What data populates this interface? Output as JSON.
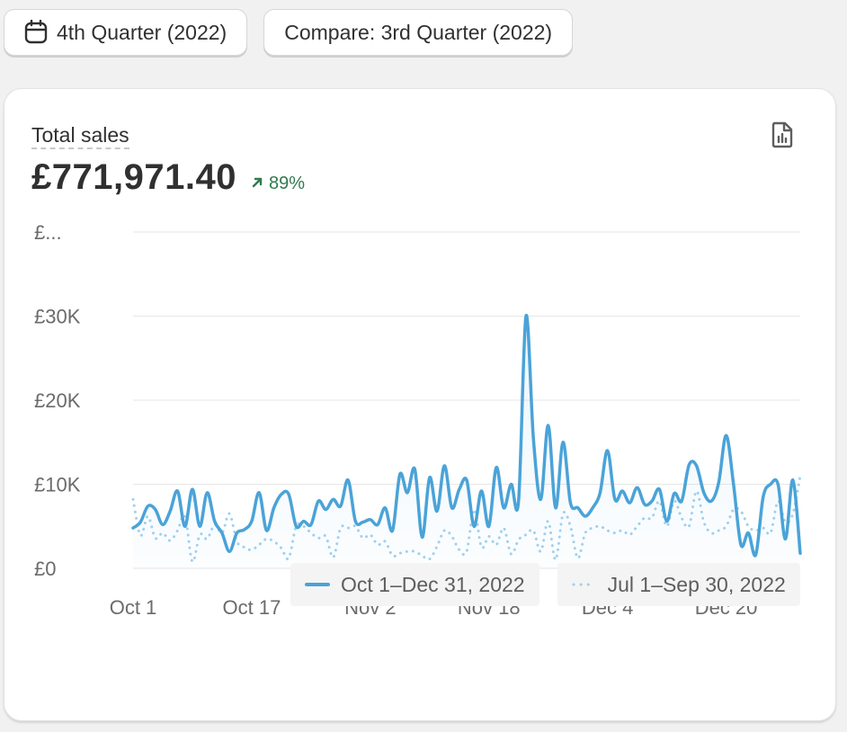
{
  "toolbar": {
    "period_label": "4th Quarter (2022)",
    "compare_label": "Compare: 3rd Quarter (2022)"
  },
  "card": {
    "title": "Total sales",
    "value": "£771,971.40",
    "change": "89%",
    "change_color": "#2f7a4f"
  },
  "icons": {
    "period": "calendar-icon",
    "report": "report-icon",
    "change": "arrow-up-right-icon"
  },
  "colors": {
    "current_series": "#4aa3d8",
    "previous_series": "#9fd0ee",
    "grid": "#e6e6e6",
    "axis_text": "#6b6b6b"
  },
  "chart_data": {
    "type": "line",
    "xlabel": "",
    "ylabel": "",
    "ylim": [
      0,
      40000
    ],
    "yticks": [
      0,
      10000,
      20000,
      30000,
      40000
    ],
    "ytick_labels": [
      "£0",
      "£10K",
      "£20K",
      "£30K",
      "£..."
    ],
    "xtick_labels": [
      "Oct 1",
      "Oct 17",
      "Nov 2",
      "Nov 18",
      "Dec 4",
      "Dec 20"
    ],
    "xtick_index": [
      0,
      16,
      32,
      48,
      64,
      80
    ],
    "grid": true,
    "legend_position": "bottom-right",
    "series": [
      {
        "name": "Oct 1–Dec 31, 2022",
        "style": "solid",
        "values": [
          4800,
          5500,
          7400,
          7000,
          5200,
          6800,
          9200,
          5000,
          9400,
          5000,
          9000,
          5600,
          4200,
          2000,
          4200,
          4600,
          5600,
          9000,
          4500,
          7200,
          8800,
          8800,
          5000,
          5600,
          5200,
          8000,
          7000,
          8200,
          7400,
          10500,
          5600,
          5500,
          5800,
          5200,
          7200,
          4500,
          11200,
          9000,
          11800,
          3700,
          10800,
          6800,
          12200,
          7200,
          9400,
          10500,
          5000,
          9200,
          5000,
          12000,
          7200,
          10000,
          8000,
          30000,
          15500,
          8200,
          17000,
          7200,
          15000,
          7800,
          7200,
          6200,
          7200,
          9000,
          14000,
          8200,
          9200,
          7800,
          9600,
          7600,
          8000,
          9400,
          5600,
          8900,
          8000,
          12300,
          12200,
          9000,
          8000,
          10200,
          15800,
          10000,
          2800,
          4200,
          1600,
          8500,
          10000,
          10000,
          3500,
          10500,
          1800
        ]
      },
      {
        "name": "Jul 1–Sep 30, 2022",
        "style": "dotted",
        "values": [
          8200,
          3900,
          6200,
          3600,
          4200,
          3300,
          4500,
          6200,
          800,
          4000,
          3500,
          5200,
          4200,
          6500,
          3200,
          2500,
          2200,
          2800,
          3500,
          3200,
          2400,
          1200,
          5000,
          5000,
          4200,
          3600,
          3800,
          1300,
          4800,
          4800,
          5000,
          3600,
          4000,
          2800,
          3200,
          1500,
          1800,
          2000,
          2000,
          1500,
          1100,
          2600,
          4500,
          3800,
          2200,
          2000,
          7000,
          2500,
          3800,
          2800,
          4800,
          1700,
          3400,
          4000,
          4500,
          2000,
          5600,
          1000,
          6500,
          5000,
          1200,
          4200,
          4800,
          5000,
          4500,
          4200,
          4500,
          4000,
          5000,
          6000,
          6000,
          8000,
          5000,
          8000,
          6000,
          5000,
          9200,
          5500,
          4200,
          4500,
          5000,
          7000,
          6800,
          5000,
          4500,
          4800,
          4200,
          8000,
          5500,
          6500,
          11000
        ]
      }
    ]
  }
}
